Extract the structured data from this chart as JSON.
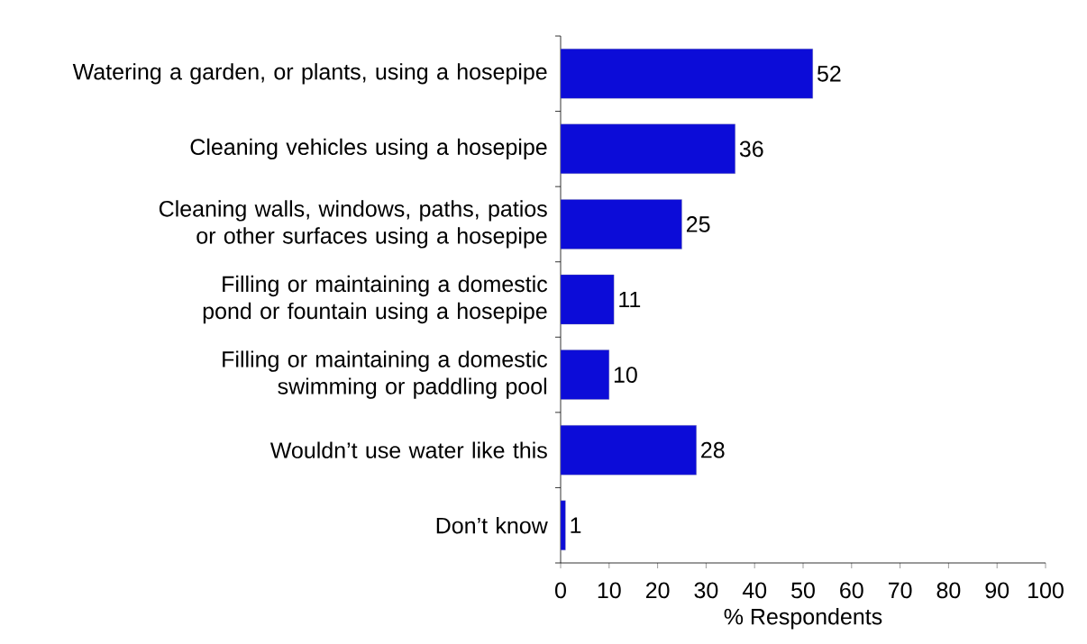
{
  "chart_data": {
    "type": "bar",
    "orientation": "horizontal",
    "categories": [
      "Watering a garden, or plants, using a hosepipe",
      "Cleaning vehicles using a hosepipe",
      "Cleaning walls, windows, paths, patios or other surfaces using a hosepipe",
      "Filling or maintaining a domestic pond or fountain using a hosepipe",
      "Filling or maintaining a domestic swimming or paddling pool",
      "Wouldn’t use water like this",
      "Don’t know"
    ],
    "values": [
      52,
      36,
      25,
      11,
      10,
      28,
      1
    ],
    "color": "#0c0cd8",
    "xlim": [
      0,
      100
    ],
    "xticks": [
      0,
      10,
      20,
      30,
      40,
      50,
      60,
      70,
      80,
      90,
      100
    ],
    "xlabel": "% Respondents",
    "data_labels": true
  }
}
